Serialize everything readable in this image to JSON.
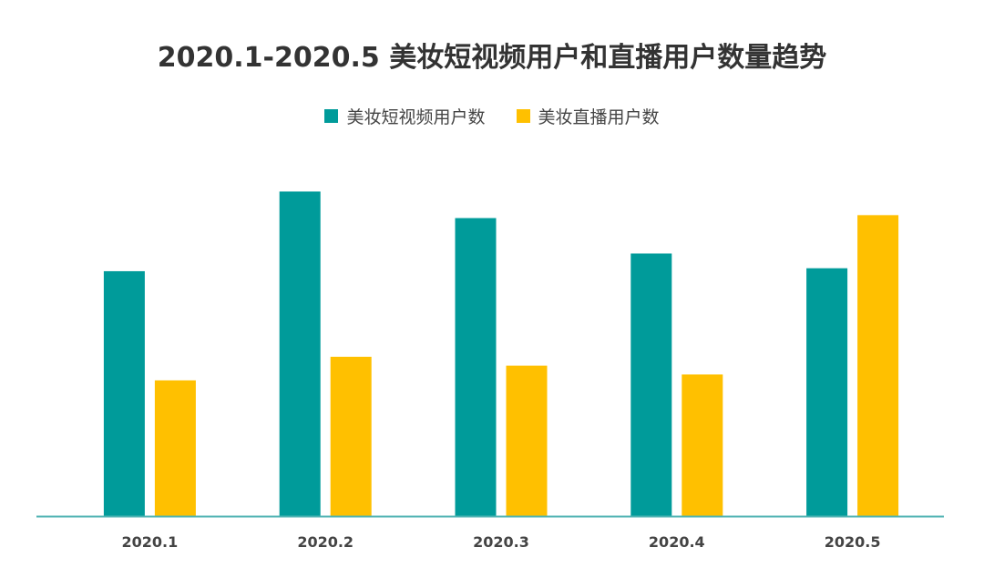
{
  "chart_data": {
    "type": "bar",
    "title": "2020.1-2020.5 美妆短视频用户和直播用户数量趋势",
    "categories": [
      "2020.1",
      "2020.2",
      "2020.3",
      "2020.4",
      "2020.5"
    ],
    "series": [
      {
        "name": "美妆短视频用户数",
        "color": "#009B9A",
        "values": [
          83,
          110,
          101,
          89,
          84
        ]
      },
      {
        "name": "美妆直播用户数",
        "color": "#FFC000",
        "values": [
          46,
          54,
          51,
          48,
          102
        ]
      }
    ],
    "ylim": [
      0,
      120
    ],
    "grid": false,
    "legend_position": "top-center",
    "axis_color": "#4FB3B3"
  }
}
